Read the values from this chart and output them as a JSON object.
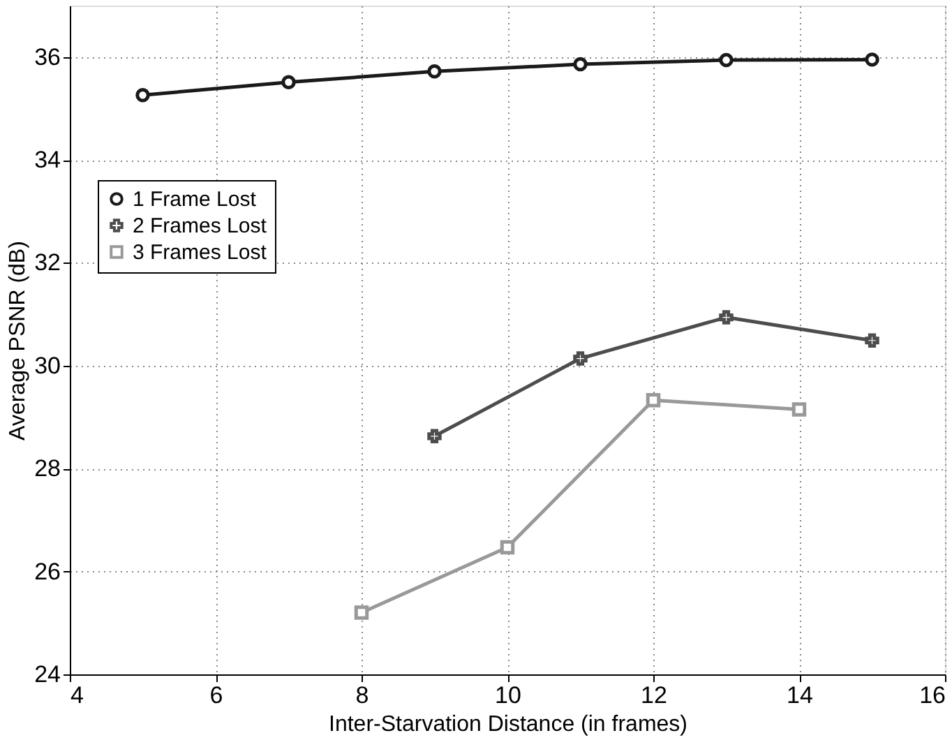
{
  "chart_data": {
    "type": "line",
    "xlabel": "Inter-Starvation Distance (in frames)",
    "ylabel": "Average PSNR (dB)",
    "xlim": [
      4,
      16
    ],
    "xticks": [
      4,
      6,
      8,
      10,
      12,
      14,
      16
    ],
    "ylim": [
      24,
      37
    ],
    "yticks": [
      24,
      26,
      28,
      30,
      32,
      34,
      36
    ],
    "grid": true,
    "legend": "top left",
    "series": [
      {
        "name": "1 Frame Lost",
        "color": "#1a1a1a",
        "marker": "circle",
        "x": [
          5,
          7,
          9,
          11,
          13,
          15
        ],
        "values": [
          35.26,
          35.51,
          35.72,
          35.86,
          35.94,
          35.95
        ]
      },
      {
        "name": "2 Frames Lost",
        "color": "#4d4d4d",
        "marker": "cross",
        "x": [
          9,
          11,
          13,
          15
        ],
        "values": [
          28.63,
          30.14,
          30.94,
          30.49
        ]
      },
      {
        "name": "3 Frames Lost",
        "color": "#999999",
        "marker": "square",
        "x": [
          8,
          10,
          12,
          14
        ],
        "values": [
          25.2,
          26.47,
          29.33,
          29.15
        ]
      }
    ]
  }
}
